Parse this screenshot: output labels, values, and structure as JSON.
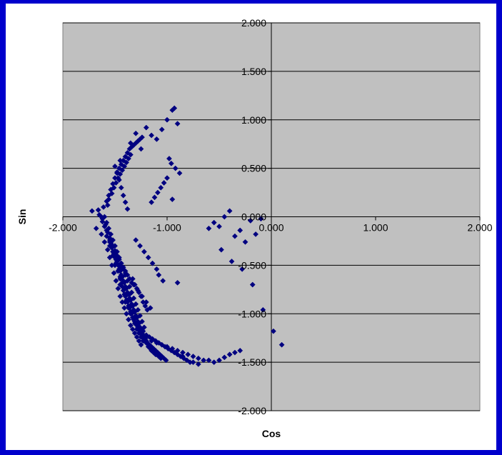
{
  "colors": {
    "frame_border": "#0000cc",
    "chart_background": "#ffffff",
    "plot_background": "#c0c0c0",
    "gridline": "#000000",
    "marker": "#000080"
  },
  "chart_data": {
    "type": "scatter",
    "title": "",
    "xlabel": "Cos",
    "ylabel": "Sin",
    "xlim": [
      -2,
      2
    ],
    "ylim": [
      -2,
      2
    ],
    "x_tick_values": [
      -2,
      -1,
      0,
      1,
      2
    ],
    "y_tick_values": [
      -2,
      -1.5,
      -1,
      -0.5,
      0,
      0.5,
      1,
      1.5,
      2
    ],
    "x_tick_labels": [
      "-2.000",
      "-1.000",
      "0.000",
      "1.000",
      "2.000"
    ],
    "y_tick_labels": [
      "-2.000",
      "-1.500",
      "-1.000",
      "-0.500",
      "0.000",
      "0.500",
      "1.000",
      "1.500",
      "2.000"
    ],
    "grid": "horizontal major gridlines",
    "legend": "none",
    "marker": "diamond",
    "series": [
      {
        "x": [
          -1.72,
          -1.66,
          -1.64,
          -1.62,
          -1.6,
          -1.58,
          -1.57,
          -1.56,
          -1.55,
          -1.54,
          -1.53,
          -1.52,
          -1.51,
          -1.5,
          -1.49,
          -1.48,
          -1.47,
          -1.46,
          -1.45,
          -1.44,
          -1.43,
          -1.42,
          -1.41,
          -1.4,
          -1.39,
          -1.38,
          -1.37,
          -1.36,
          -1.35,
          -1.34,
          -1.62,
          -1.59,
          -1.57,
          -1.55,
          -1.53,
          -1.51,
          -1.49,
          -1.47,
          -1.45,
          -1.43,
          -1.41,
          -1.39,
          -1.37,
          -1.35,
          -1.33,
          -1.31,
          -1.29,
          -1.27,
          -1.25,
          -1.23,
          -1.65,
          -1.61,
          -1.58,
          -1.56,
          -1.54,
          -1.52,
          -1.5,
          -1.48,
          -1.46,
          -1.44,
          -1.42,
          -1.4,
          -1.38,
          -1.36,
          -1.34,
          -1.32,
          -1.3,
          -1.28,
          -1.26,
          -1.24,
          -1.68,
          -1.63,
          -1.6,
          -1.57,
          -1.55,
          -1.53,
          -1.51,
          -1.49,
          -1.47,
          -1.45,
          -1.43,
          -1.41,
          -1.39,
          -1.37,
          -1.35,
          -1.33,
          -1.31,
          -1.29,
          -1.27,
          -1.25,
          -1.6,
          -1.58,
          -1.56,
          -1.54,
          -1.52,
          -1.5,
          -1.48,
          -1.46,
          -1.44,
          -1.42,
          -1.4,
          -1.38,
          -1.36,
          -1.34,
          -1.32,
          -1.3,
          -1.28,
          -1.26,
          -1.24,
          -1.22,
          -1.58,
          -1.55,
          -1.53,
          -1.51,
          -1.49,
          -1.47,
          -1.45,
          -1.43,
          -1.41,
          -1.39,
          -1.37,
          -1.35,
          -1.33,
          -1.31,
          -1.29,
          -1.27,
          -1.25,
          -1.23,
          -1.21,
          -1.19,
          -1.55,
          -1.52,
          -1.5,
          -1.48,
          -1.46,
          -1.44,
          -1.42,
          -1.4,
          -1.38,
          -1.36,
          -1.34,
          -1.32,
          -1.3,
          -1.28,
          -1.26,
          -1.24,
          -1.22,
          -1.2,
          -1.18,
          -1.16,
          -1.5,
          -1.47,
          -1.45,
          -1.43,
          -1.41,
          -1.39,
          -1.37,
          -1.35,
          -1.33,
          -1.31,
          -1.29,
          -1.27,
          -1.25,
          -1.23,
          -1.21,
          -1.19,
          -1.17,
          -1.15,
          -1.13,
          -1.11,
          -1.45,
          -1.42,
          -1.4,
          -1.38,
          -1.36,
          -1.34,
          -1.32,
          -1.3,
          -1.28,
          -1.26,
          -1.24,
          -1.22,
          -1.2,
          -1.18,
          -1.16,
          -1.14,
          -1.12,
          -1.1,
          -1.08,
          -1.06,
          -1.4,
          -1.37,
          -1.35,
          -1.33,
          -1.31,
          -1.29,
          -1.27,
          -1.25,
          -1.23,
          -1.21,
          -1.19,
          -1.17,
          -1.15,
          -1.13,
          -1.11,
          -1.09,
          -1.07,
          -1.05,
          -1.03,
          -1.01,
          -1.32,
          -1.29,
          -1.26,
          -1.23,
          -1.2,
          -1.17,
          -1.14,
          -1.11,
          -1.08,
          -1.05,
          -1.02,
          -0.99,
          -0.96,
          -0.93,
          -0.9,
          -0.87,
          -0.84,
          -0.81,
          -0.78,
          -0.75,
          -1.25,
          -1.2,
          -1.15,
          -1.1,
          -1.05,
          -1.0,
          -0.95,
          -0.9,
          -0.85,
          -0.8,
          -0.75,
          -0.7,
          -0.65,
          -0.6,
          -0.55,
          -0.5,
          -0.45,
          -0.4,
          -0.35,
          -0.3,
          -1.1,
          -1.05,
          -1.0,
          -0.95,
          -0.93,
          -0.9,
          -1.2,
          -1.15,
          -1.3,
          -1.25,
          -1.35,
          -1.4,
          -1.45,
          -1.5,
          -1.48,
          -1.46,
          -1.44,
          -1.42,
          -1.4,
          -1.38,
          -0.98,
          -0.96,
          -0.92,
          -0.88,
          -1.0,
          -1.03,
          -1.06,
          -1.09,
          -1.12,
          -1.15,
          -0.95,
          -1.3,
          -1.26,
          -1.22,
          -1.18,
          -1.14,
          -1.1,
          -1.08,
          -1.04,
          -0.9,
          -0.55,
          -0.5,
          -0.45,
          -0.4,
          -0.35,
          -0.3,
          -0.25,
          -0.2,
          -0.15,
          -0.1,
          -0.6,
          -0.48,
          -0.38,
          -0.28,
          -0.18,
          -0.08,
          0.02,
          0.1,
          -0.7,
          -0.85,
          -1.36,
          -1.34,
          -1.33,
          -1.31,
          -1.29,
          -1.27,
          -1.25,
          -1.23,
          -1.21,
          -1.19,
          -1.52,
          -1.48,
          -1.44,
          -1.4,
          -1.36,
          -1.32,
          -1.28,
          -1.24,
          -1.2,
          -1.16
        ],
        "y": [
          0.06,
          0.07,
          0.01,
          -0.05,
          -0.1,
          -0.14,
          0.12,
          0.18,
          -0.22,
          -0.27,
          0.24,
          -0.3,
          0.3,
          -0.35,
          0.35,
          -0.4,
          0.4,
          -0.44,
          0.44,
          -0.48,
          0.48,
          -0.52,
          0.52,
          -0.56,
          0.56,
          -0.6,
          0.6,
          -0.64,
          0.64,
          -0.68,
          -0.02,
          -0.08,
          -0.16,
          -0.24,
          -0.32,
          -0.4,
          -0.48,
          -0.56,
          -0.64,
          -0.72,
          -0.8,
          -0.86,
          -0.92,
          -0.98,
          -1.04,
          -1.1,
          -1.16,
          -1.2,
          -1.24,
          -1.28,
          0.02,
          0.1,
          0.16,
          0.22,
          0.28,
          0.34,
          0.4,
          0.46,
          0.5,
          0.54,
          0.58,
          0.62,
          0.66,
          0.7,
          0.72,
          0.74,
          0.76,
          0.78,
          0.8,
          0.82,
          -0.12,
          -0.18,
          -0.26,
          -0.34,
          -0.42,
          -0.5,
          -0.58,
          -0.66,
          -0.74,
          -0.82,
          -0.88,
          -0.94,
          -1.0,
          -1.06,
          -1.12,
          -1.16,
          -1.2,
          -1.24,
          -1.28,
          -1.32,
          0.0,
          -0.06,
          -0.12,
          -0.18,
          -0.24,
          -0.3,
          -0.36,
          -0.42,
          -0.48,
          -0.54,
          -0.6,
          -0.66,
          -0.72,
          -0.78,
          -0.84,
          -0.9,
          -0.96,
          -1.02,
          -1.08,
          -1.14,
          -0.2,
          -0.26,
          -0.32,
          -0.38,
          -0.44,
          -0.5,
          -0.56,
          -0.62,
          -0.68,
          -0.74,
          -0.8,
          -0.86,
          -0.92,
          -0.98,
          -1.04,
          -1.1,
          -1.16,
          -1.22,
          -1.26,
          -1.3,
          -0.3,
          -0.36,
          -0.42,
          -0.48,
          -0.54,
          -0.6,
          -0.66,
          -0.72,
          -0.78,
          -0.84,
          -0.9,
          -0.96,
          -1.02,
          -1.08,
          -1.14,
          -1.2,
          -1.24,
          -1.28,
          -1.32,
          -1.36,
          -0.5,
          -0.56,
          -0.62,
          -0.68,
          -0.74,
          -0.8,
          -0.86,
          -0.92,
          -0.98,
          -1.04,
          -1.1,
          -1.14,
          -1.18,
          -1.22,
          -1.26,
          -1.3,
          -1.34,
          -1.38,
          -1.4,
          -1.42,
          -0.7,
          -0.76,
          -0.82,
          -0.88,
          -0.94,
          -1.0,
          -1.06,
          -1.1,
          -1.14,
          -1.18,
          -1.22,
          -1.26,
          -1.3,
          -1.34,
          -1.36,
          -1.38,
          -1.4,
          -1.42,
          -1.44,
          -1.46,
          -0.88,
          -0.94,
          -1.0,
          -1.04,
          -1.08,
          -1.12,
          -1.16,
          -1.2,
          -1.24,
          -1.28,
          -1.3,
          -1.32,
          -1.34,
          -1.36,
          -1.38,
          -1.4,
          -1.42,
          -1.44,
          -1.46,
          -1.48,
          -1.06,
          -1.1,
          -1.14,
          -1.18,
          -1.22,
          -1.24,
          -1.26,
          -1.28,
          -1.3,
          -1.32,
          -1.34,
          -1.36,
          -1.38,
          -1.4,
          -1.42,
          -1.44,
          -1.46,
          -1.48,
          -1.5,
          -1.5,
          -1.2,
          -1.24,
          -1.28,
          -1.3,
          -1.32,
          -1.34,
          -1.36,
          -1.38,
          -1.4,
          -1.42,
          -1.44,
          -1.46,
          -1.48,
          -1.48,
          -1.5,
          -1.48,
          -1.45,
          -1.42,
          -1.4,
          -1.38,
          0.8,
          0.9,
          1.0,
          1.1,
          1.12,
          0.96,
          0.92,
          0.84,
          0.86,
          0.7,
          0.76,
          0.62,
          0.58,
          0.52,
          0.45,
          0.38,
          0.3,
          0.22,
          0.15,
          0.08,
          0.6,
          0.55,
          0.5,
          0.45,
          0.4,
          0.35,
          0.3,
          0.25,
          0.2,
          0.15,
          0.18,
          -0.24,
          -0.3,
          -0.36,
          -0.42,
          -0.48,
          -0.54,
          -0.6,
          -0.66,
          -0.68,
          -0.06,
          -0.1,
          0.0,
          0.06,
          -0.2,
          -0.14,
          -0.26,
          -0.04,
          -0.18,
          -0.02,
          -0.12,
          -0.34,
          -0.46,
          -0.54,
          -0.7,
          -0.96,
          -1.18,
          -1.32,
          -1.52,
          -1.44,
          -0.8,
          -0.98,
          -0.64,
          -0.7,
          -0.74,
          -0.78,
          -0.82,
          -0.88,
          -0.92,
          -0.96,
          -0.4,
          -0.46,
          -0.52,
          -0.58,
          -0.64,
          -0.7,
          -0.76,
          -0.82,
          -0.88,
          -0.94
        ]
      }
    ]
  }
}
